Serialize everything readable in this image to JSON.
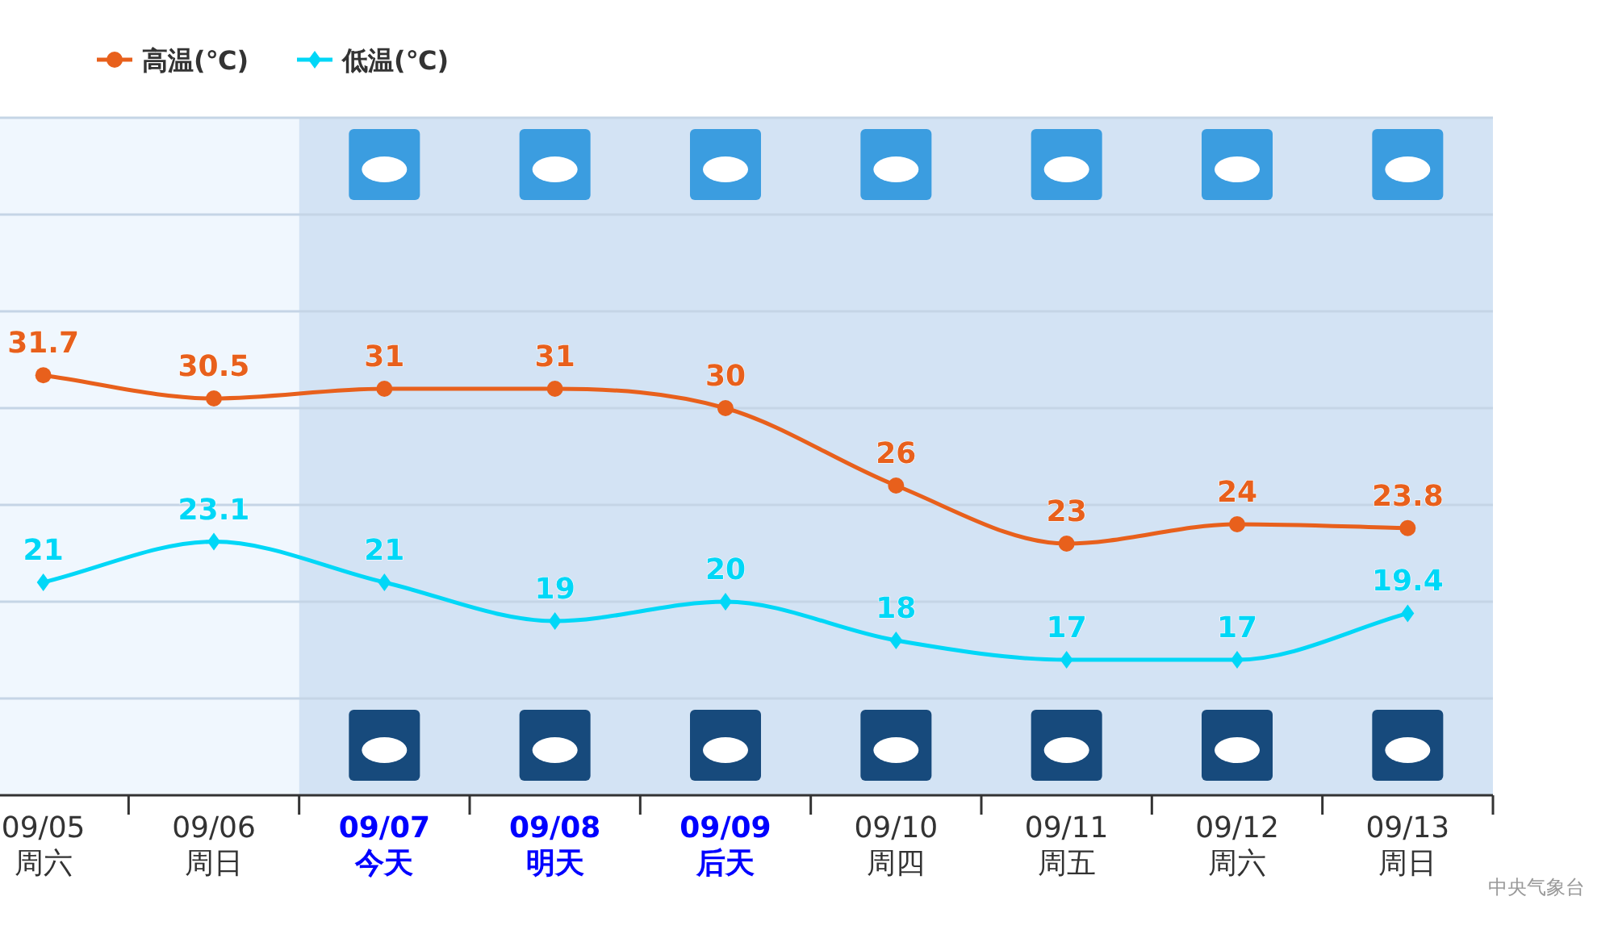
{
  "chart_data": {
    "type": "line",
    "categories": [
      "09/05\n周六",
      "09/06\n周日",
      "09/07\n今天",
      "09/08\n明天",
      "09/09\n后天",
      "09/10\n周四",
      "09/11\n周五",
      "09/12\n周六",
      "09/13\n周日"
    ],
    "series": [
      {
        "name": "高温(℃)",
        "color": "#e8601c",
        "marker": "circle",
        "values": [
          31.7,
          30.5,
          31,
          31,
          30,
          26,
          23,
          24,
          23.8
        ]
      },
      {
        "name": "低温(℃)",
        "color": "#00d7f7",
        "marker": "diamond",
        "values": [
          21,
          23.1,
          21,
          19,
          20,
          18,
          17,
          17,
          19.4
        ]
      }
    ],
    "ylim": [
      10,
      45
    ],
    "yticks": [
      {
        "value": 15,
        "label": null
      },
      {
        "value": 20,
        "label": null
      },
      {
        "value": 25,
        "label": null
      },
      {
        "value": 30,
        "label": null
      },
      {
        "value": 35,
        "label": null
      },
      {
        "value": 40,
        "label": null
      },
      {
        "value": 45,
        "label": null
      }
    ],
    "tick_labels": "x",
    "grid": "y",
    "legend": "top left",
    "data_labels": true,
    "line_style": "solid",
    "bands": [
      {
        "axis": "x",
        "from": "09/05\n周六",
        "to": "09/06\n周日",
        "color": "#f0f7fe"
      },
      {
        "axis": "x",
        "from": "09/07\n今天",
        "to": "09/13\n周日",
        "color": "#d3e3f4"
      }
    ],
    "annotations": [
      "中央气象台"
    ]
  }
}
